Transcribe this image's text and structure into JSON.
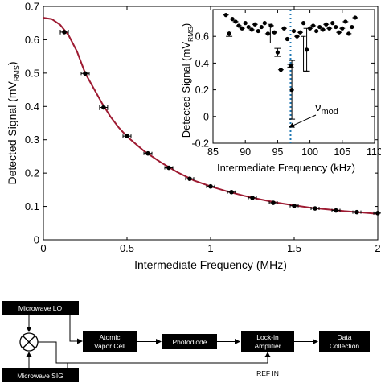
{
  "chart_data": [
    {
      "type": "scatter",
      "xlabel": "Intermediate Frequency (MHz)",
      "ylabel": "Detected Signal (mV",
      "ylabel_sub": "RMS",
      "ylabel_close": ")",
      "xlim": [
        0,
        2
      ],
      "ylim": [
        0,
        0.7
      ],
      "x_ticks": [
        0,
        0.5,
        1,
        1.5,
        2
      ],
      "x_tick_labels": [
        "0",
        "0.5",
        "1",
        "1.5",
        "2"
      ],
      "y_ticks": [
        0,
        0.1,
        0.2,
        0.3,
        0.4,
        0.5,
        0.6,
        0.7
      ],
      "y_tick_labels": [
        "0",
        "0.1",
        "0.2",
        "0.3",
        "0.4",
        "0.5",
        "0.6",
        "0.7"
      ],
      "grid": false,
      "series": [
        {
          "type": "scatter",
          "color": "#000000",
          "points": [
            {
              "x": 0.125,
              "y": 0.623,
              "err": 0.007
            },
            {
              "x": 0.25,
              "y": 0.499,
              "err": 0.005
            },
            {
              "x": 0.36,
              "y": 0.397,
              "err": 0.008
            },
            {
              "x": 0.5,
              "y": 0.311,
              "err": 0.005
            },
            {
              "x": 0.625,
              "y": 0.259,
              "err": 0.004
            },
            {
              "x": 0.75,
              "y": 0.216,
              "err": 0.004
            },
            {
              "x": 0.875,
              "y": 0.183,
              "err": 0.004
            },
            {
              "x": 1.0,
              "y": 0.16,
              "err": 0.003
            },
            {
              "x": 1.125,
              "y": 0.143,
              "err": 0.003
            },
            {
              "x": 1.25,
              "y": 0.126,
              "err": 0.003
            },
            {
              "x": 1.375,
              "y": 0.111,
              "err": 0.003
            },
            {
              "x": 1.5,
              "y": 0.102,
              "err": 0.003
            },
            {
              "x": 1.625,
              "y": 0.094,
              "err": 0.003
            },
            {
              "x": 1.75,
              "y": 0.088,
              "err": 0.003
            },
            {
              "x": 1.875,
              "y": 0.083,
              "err": 0.003
            },
            {
              "x": 2.0,
              "y": 0.08,
              "err": 0.003
            }
          ]
        },
        {
          "type": "line",
          "color": "#9e1b32",
          "x": [
            0,
            0.05,
            0.1,
            0.15,
            0.2,
            0.25,
            0.3,
            0.35,
            0.4,
            0.45,
            0.5,
            0.6,
            0.7,
            0.8,
            0.9,
            1.0,
            1.1,
            1.2,
            1.3,
            1.4,
            1.5,
            1.6,
            1.7,
            1.8,
            1.9,
            2.0
          ],
          "y": [
            0.666,
            0.662,
            0.645,
            0.614,
            0.566,
            0.5,
            0.455,
            0.41,
            0.37,
            0.337,
            0.31,
            0.267,
            0.233,
            0.203,
            0.178,
            0.16,
            0.145,
            0.132,
            0.121,
            0.111,
            0.103,
            0.096,
            0.091,
            0.086,
            0.082,
            0.078
          ]
        }
      ]
    },
    {
      "type": "scatter",
      "xlabel": "Intermediate Frequency (kHz)",
      "ylabel": "Detected Signal (mV",
      "ylabel_sub": "RMS",
      "ylabel_close": ")",
      "xlim": [
        85,
        110
      ],
      "ylim": [
        -0.2,
        0.8
      ],
      "x_ticks": [
        85,
        90,
        95,
        100,
        105,
        110
      ],
      "x_tick_labels": [
        "85",
        "90",
        "95",
        "100",
        "105",
        "110"
      ],
      "y_ticks": [
        -0.2,
        0,
        0.2,
        0.4,
        0.6
      ],
      "y_tick_labels": [
        "-0.2",
        "0",
        "0.2",
        "0.4",
        "0.6"
      ],
      "marker_line_x": 97,
      "annotation": "ν",
      "annotation_sub": "mod",
      "series": [
        {
          "type": "scatter",
          "color": "#000000",
          "points": [
            {
              "x": 87.0,
              "y": 0.76
            },
            {
              "x": 87.5,
              "y": 0.62,
              "err": 0.02
            },
            {
              "x": 88.0,
              "y": 0.73
            },
            {
              "x": 88.5,
              "y": 0.71
            },
            {
              "x": 89.0,
              "y": 0.68
            },
            {
              "x": 89.5,
              "y": 0.66
            },
            {
              "x": 90.0,
              "y": 0.7
            },
            {
              "x": 90.5,
              "y": 0.67
            },
            {
              "x": 91.0,
              "y": 0.65
            },
            {
              "x": 91.5,
              "y": 0.69
            },
            {
              "x": 92.0,
              "y": 0.64
            },
            {
              "x": 92.5,
              "y": 0.67
            },
            {
              "x": 93.0,
              "y": 0.7
            },
            {
              "x": 93.5,
              "y": 0.62
            },
            {
              "x": 94.0,
              "y": 0.68
            },
            {
              "x": 94.5,
              "y": 0.63
            },
            {
              "x": 95.0,
              "y": 0.48,
              "err": 0.03
            },
            {
              "x": 95.5,
              "y": 0.35
            },
            {
              "x": 96.0,
              "y": 0.66
            },
            {
              "x": 96.5,
              "y": 0.58
            },
            {
              "x": 97.0,
              "y": 0.38,
              "err": 0.01
            },
            {
              "x": 97.2,
              "y": 0.2,
              "err": 0.22
            },
            {
              "x": 97.5,
              "y": 0.64
            },
            {
              "x": 98.0,
              "y": 0.6
            },
            {
              "x": 98.5,
              "y": 0.63
            },
            {
              "x": 99.0,
              "y": 0.7
            },
            {
              "x": 99.5,
              "y": 0.5,
              "err": 0.16
            },
            {
              "x": 100.0,
              "y": 0.66
            },
            {
              "x": 100.5,
              "y": 0.68
            },
            {
              "x": 101.0,
              "y": 0.64
            },
            {
              "x": 101.5,
              "y": 0.67
            },
            {
              "x": 102.0,
              "y": 0.65
            },
            {
              "x": 102.5,
              "y": 0.69
            },
            {
              "x": 103.0,
              "y": 0.66
            },
            {
              "x": 103.5,
              "y": 0.7
            },
            {
              "x": 104.0,
              "y": 0.67
            },
            {
              "x": 104.5,
              "y": 0.63
            },
            {
              "x": 105.0,
              "y": 0.66
            },
            {
              "x": 105.5,
              "y": 0.71
            },
            {
              "x": 106.0,
              "y": 0.62
            },
            {
              "x": 106.5,
              "y": 0.67
            },
            {
              "x": 107.0,
              "y": 0.74
            }
          ],
          "bracket": {
            "x_left": 93.5,
            "x_right": 99.0,
            "y_top": 0.69,
            "y_bottom": 0.34
          }
        }
      ]
    }
  ],
  "diagram": {
    "blocks": [
      {
        "id": "microwave-lo",
        "label": "Microwave LO"
      },
      {
        "id": "microwave-sig",
        "label": "Microwave SIG"
      },
      {
        "id": "atomic-vapor-cell",
        "label": "Atomic Vapor Cell",
        "lines": [
          "Atomic",
          "Vapor Cell"
        ]
      },
      {
        "id": "photodiode",
        "label": "Photodiode",
        "lines": [
          "Photodiode"
        ]
      },
      {
        "id": "lock-in-amplifier",
        "label": "Lock-in Amplifier",
        "lines": [
          "Lock-in",
          "Amplifier"
        ]
      },
      {
        "id": "data-collection",
        "label": "Data Collection",
        "lines": [
          "Data",
          "Collection"
        ]
      }
    ],
    "ref_label": "REF IN"
  }
}
